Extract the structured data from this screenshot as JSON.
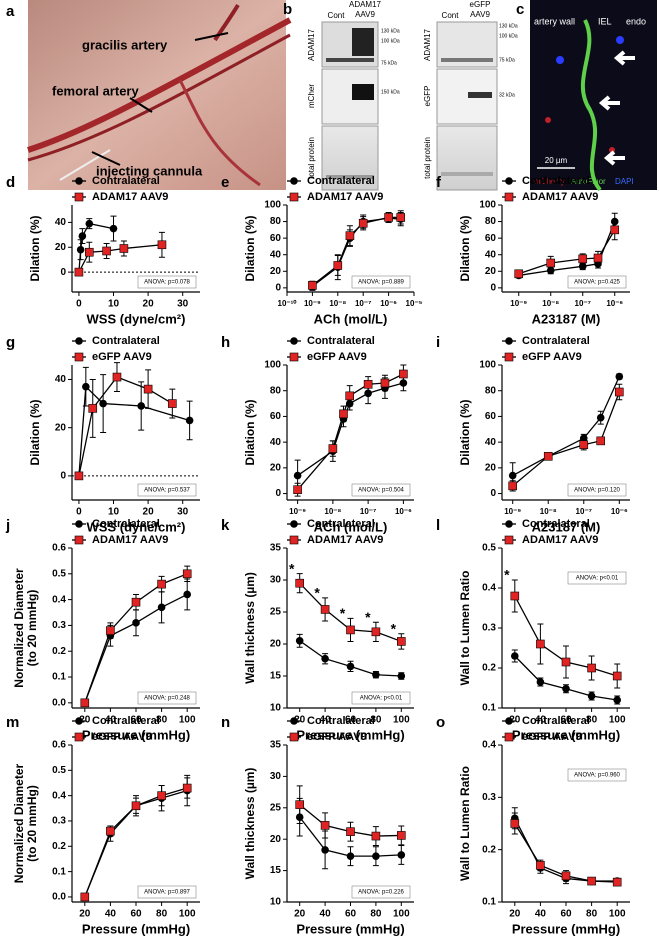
{
  "panel_a": {
    "letter": "a",
    "labels": [
      "gracilis artery",
      "femoral artery",
      "injecting cannula"
    ]
  },
  "panel_b": {
    "letter": "b",
    "left": {
      "lanes": [
        "Cont",
        "ADAM17",
        "AAV9"
      ],
      "rows": [
        "ADAM17",
        "mCher",
        "total protein"
      ],
      "sizes": [
        "130 kDa",
        "100 kDa",
        "75 kDa",
        "150 kDa"
      ]
    },
    "right": {
      "lanes": [
        "Cont",
        "eGFP",
        "AAV9"
      ],
      "rows": [
        "ADAM17",
        "eGFP",
        "total protein"
      ],
      "sizes": [
        "130 kDa",
        "100 kDa",
        "75 kDa",
        "32 kDa"
      ]
    }
  },
  "panel_c": {
    "letter": "c",
    "labels": [
      "artery wall",
      "IEL",
      "endo"
    ],
    "scale": "20 µm",
    "channels": [
      "mCherry",
      "AutoFluor",
      "DAPI"
    ]
  },
  "chart_data": [
    {
      "type": "line",
      "panel": "d",
      "xlabel": "WSS (dyne/cm²)",
      "ylabel": "Dilation (%)",
      "xlim": [
        -2,
        35
      ],
      "ylim": [
        -16,
        54
      ],
      "xticks": [
        0,
        10,
        20,
        30
      ],
      "yticks": [
        0,
        20,
        40
      ],
      "zero_line": true,
      "anova": "ANOVA: p=0.078",
      "series": [
        {
          "name": "Contralateral",
          "color": "#000000",
          "marker": "circle",
          "x": [
            0,
            0.5,
            1,
            3,
            10
          ],
          "values": [
            0,
            18,
            29,
            39,
            35
          ],
          "errors": [
            0,
            8,
            6,
            4,
            10
          ]
        },
        {
          "name": "ADAM17 AAV9",
          "color": "#e02424",
          "marker": "square",
          "x": [
            0,
            3,
            8,
            13,
            24
          ],
          "values": [
            0,
            16,
            17,
            19,
            22
          ],
          "errors": [
            0,
            8,
            6,
            6,
            10
          ]
        }
      ]
    },
    {
      "type": "line",
      "panel": "e",
      "xlabel": "ACh (mol/L)",
      "ylabel": "Dilation (%)",
      "xscale": "log",
      "xlim": [
        1e-10,
        1e-05
      ],
      "ylim": [
        -5,
        100
      ],
      "xticks": [
        {
          "value": 1e-10,
          "label": "10⁻¹⁰"
        },
        {
          "value": 1e-09,
          "label": "10⁻⁹"
        },
        {
          "value": 1e-08,
          "label": "10⁻⁸"
        },
        {
          "value": 1e-07,
          "label": "10⁻⁷"
        },
        {
          "value": 1e-06,
          "label": "10⁻⁶"
        },
        {
          "value": 1e-05,
          "label": "10⁻⁵"
        }
      ],
      "yticks": [
        0,
        20,
        40,
        60,
        80,
        100
      ],
      "anova": "ANOVA: p=0.889",
      "series": [
        {
          "name": "Contralateral",
          "color": "#000000",
          "marker": "circle",
          "x": [
            1e-09,
            1e-08,
            3e-08,
            1e-07,
            1e-06,
            3e-06
          ],
          "values": [
            2,
            25,
            60,
            80,
            84,
            83
          ],
          "errors": [
            5,
            15,
            10,
            8,
            5,
            8
          ]
        },
        {
          "name": "ADAM17 AAV9",
          "color": "#e02424",
          "marker": "square",
          "x": [
            1e-09,
            1e-08,
            3e-08,
            1e-07,
            1e-06,
            3e-06
          ],
          "values": [
            3,
            27,
            63,
            78,
            85,
            85
          ],
          "errors": [
            5,
            12,
            12,
            8,
            6,
            8
          ]
        }
      ]
    },
    {
      "type": "line",
      "panel": "f",
      "xlabel": "A23187 (M)",
      "ylabel": "Dilation (%)",
      "xscale": "log",
      "xlim": [
        3e-10,
        3e-06
      ],
      "ylim": [
        -5,
        100
      ],
      "xticks": [
        {
          "value": 1e-09,
          "label": "10⁻⁹"
        },
        {
          "value": 1e-08,
          "label": "10⁻⁸"
        },
        {
          "value": 1e-07,
          "label": "10⁻⁷"
        },
        {
          "value": 1e-06,
          "label": "10⁻⁶"
        }
      ],
      "yticks": [
        0,
        20,
        40,
        60,
        80,
        100
      ],
      "anova": "ANOVA: p=0.425",
      "series": [
        {
          "name": "Contralateral",
          "color": "#000000",
          "marker": "circle",
          "x": [
            1e-09,
            1e-08,
            1e-07,
            3e-07,
            1e-06
          ],
          "values": [
            15,
            21,
            26,
            29,
            80
          ],
          "errors": [
            3,
            4,
            4,
            5,
            10
          ]
        },
        {
          "name": "ADAM17 AAV9",
          "color": "#e02424",
          "marker": "square",
          "x": [
            1e-09,
            1e-08,
            1e-07,
            3e-07,
            1e-06
          ],
          "values": [
            17,
            30,
            35,
            36,
            70
          ],
          "errors": [
            3,
            8,
            6,
            8,
            12
          ]
        }
      ]
    },
    {
      "type": "line",
      "panel": "g",
      "xlabel": "WSS (dyne/cm²)",
      "ylabel": "Dilation (%)",
      "xlim": [
        -2,
        35
      ],
      "ylim": [
        -10,
        46
      ],
      "xticks": [
        0,
        10,
        20,
        30
      ],
      "yticks": [
        0,
        20,
        40
      ],
      "zero_line": true,
      "anova": "ANOVA: p=0.537",
      "series": [
        {
          "name": "Contralateral",
          "color": "#000000",
          "marker": "circle",
          "x": [
            0,
            2,
            7,
            18,
            32
          ],
          "values": [
            0,
            37,
            30,
            29,
            23
          ],
          "errors": [
            0,
            8,
            12,
            10,
            8
          ]
        },
        {
          "name": "eGFP AAV9",
          "color": "#e02424",
          "marker": "square",
          "x": [
            0,
            4,
            11,
            20,
            27
          ],
          "values": [
            0,
            28,
            41,
            36,
            30
          ],
          "errors": [
            0,
            12,
            6,
            8,
            6
          ]
        }
      ]
    },
    {
      "type": "line",
      "panel": "h",
      "xlabel": "ACh (mol/L)",
      "ylabel": "Dilation (%)",
      "xscale": "log",
      "xlim": [
        5e-10,
        2e-06
      ],
      "ylim": [
        -5,
        100
      ],
      "xticks": [
        {
          "value": 1e-09,
          "label": "10⁻⁹"
        },
        {
          "value": 1e-08,
          "label": "10⁻⁸"
        },
        {
          "value": 1e-07,
          "label": "10⁻⁷"
        },
        {
          "value": 1e-06,
          "label": "10⁻⁶"
        }
      ],
      "yticks": [
        0,
        20,
        40,
        60,
        80,
        100
      ],
      "anova": "ANOVA: p=0.504",
      "series": [
        {
          "name": "Contralateral",
          "color": "#000000",
          "marker": "circle",
          "x": [
            1e-09,
            1e-08,
            2e-08,
            3e-08,
            1e-07,
            3e-07,
            1e-06
          ],
          "values": [
            14,
            33,
            58,
            70,
            78,
            82,
            86
          ],
          "errors": [
            12,
            8,
            6,
            5,
            8,
            8,
            6
          ]
        },
        {
          "name": "eGFP AAV9",
          "color": "#e02424",
          "marker": "square",
          "x": [
            1e-09,
            1e-08,
            2e-08,
            3e-08,
            1e-07,
            3e-07,
            1e-06
          ],
          "values": [
            3,
            35,
            62,
            76,
            85,
            86,
            93
          ],
          "errors": [
            5,
            6,
            6,
            8,
            6,
            6,
            7
          ]
        }
      ]
    },
    {
      "type": "line",
      "panel": "i",
      "xlabel": "A23187 (M)",
      "ylabel": "Dilation (%)",
      "xscale": "log",
      "xlim": [
        5e-10,
        2e-06
      ],
      "ylim": [
        -5,
        100
      ],
      "xticks": [
        {
          "value": 1e-09,
          "label": "10⁻⁹"
        },
        {
          "value": 1e-08,
          "label": "10⁻⁸"
        },
        {
          "value": 1e-07,
          "label": "10⁻⁷"
        },
        {
          "value": 1e-06,
          "label": "10⁻⁶"
        }
      ],
      "yticks": [
        0,
        20,
        40,
        60,
        80,
        100
      ],
      "anova": "ANOVA: p=0.120",
      "series": [
        {
          "name": "Contralateral",
          "color": "#000000",
          "marker": "circle",
          "x": [
            1e-09,
            1e-08,
            1e-07,
            3e-07,
            1e-06
          ],
          "values": [
            14,
            29,
            43,
            59,
            91
          ],
          "errors": [
            10,
            2,
            3,
            5,
            2
          ]
        },
        {
          "name": "eGFP AAV9",
          "color": "#e02424",
          "marker": "square",
          "x": [
            1e-09,
            1e-08,
            1e-07,
            3e-07,
            1e-06
          ],
          "values": [
            6,
            29,
            38,
            41,
            79
          ],
          "errors": [
            4,
            2,
            4,
            2,
            6
          ]
        }
      ]
    },
    {
      "type": "line",
      "panel": "j",
      "xlabel": "Pressure (mmHg)",
      "ylabel": [
        "Normalized Diameter",
        "(to 20 mmHg)"
      ],
      "xlim": [
        10,
        110
      ],
      "ylim": [
        -0.02,
        0.6
      ],
      "xticks": [
        20,
        40,
        60,
        80,
        100
      ],
      "yticks": [
        {
          "value": 0,
          "label": "0.0"
        },
        0.1,
        0.2,
        0.3,
        0.4,
        0.5,
        0.6
      ],
      "anova": "ANOVA: p=0.248",
      "series": [
        {
          "name": "Contralateral",
          "color": "#000000",
          "marker": "circle",
          "x": [
            20,
            40,
            60,
            80,
            100
          ],
          "values": [
            0,
            0.26,
            0.31,
            0.37,
            0.42
          ],
          "errors": [
            0,
            0.04,
            0.05,
            0.06,
            0.06
          ]
        },
        {
          "name": "ADAM17 AAV9",
          "color": "#e02424",
          "marker": "square",
          "x": [
            20,
            40,
            60,
            80,
            100
          ],
          "values": [
            0,
            0.28,
            0.39,
            0.46,
            0.5
          ],
          "errors": [
            0,
            0.03,
            0.03,
            0.03,
            0.03
          ]
        }
      ]
    },
    {
      "type": "line",
      "panel": "k",
      "xlabel": "Pressure (mmHg)",
      "ylabel": "Wall thickness (µm)",
      "xlim": [
        10,
        110
      ],
      "ylim": [
        10,
        35
      ],
      "xticks": [
        20,
        40,
        60,
        80,
        100
      ],
      "yticks": [
        10,
        15,
        20,
        25,
        30,
        35
      ],
      "anova": "ANOVA: p<0.01",
      "series": [
        {
          "name": "Contralateral",
          "color": "#000000",
          "marker": "circle",
          "x": [
            20,
            40,
            60,
            80,
            100
          ],
          "values": [
            20.5,
            17.7,
            16.5,
            15.2,
            15
          ],
          "errors": [
            1,
            0.8,
            0.8,
            0.5,
            0.5
          ]
        },
        {
          "name": "ADAM17 AAV9",
          "color": "#e02424",
          "marker": "square",
          "x": [
            20,
            40,
            60,
            80,
            100
          ],
          "values": [
            29.5,
            25.4,
            22.2,
            21.9,
            20.4
          ],
          "errors": [
            1.5,
            1.8,
            1.8,
            1.5,
            1.2
          ],
          "significance": [
            "*",
            "*",
            "*",
            "*",
            "*"
          ]
        }
      ]
    },
    {
      "type": "line",
      "panel": "l",
      "xlabel": "Pressure (mmHg)",
      "ylabel": "Wall to Lumen Ratio",
      "xlim": [
        10,
        110
      ],
      "ylim": [
        0.1,
        0.5
      ],
      "xticks": [
        20,
        40,
        60,
        80,
        100
      ],
      "yticks": [
        0.1,
        0.2,
        0.3,
        0.4,
        0.5
      ],
      "anova": "ANOVA: p<0.01",
      "anova_corner": "top-right",
      "series": [
        {
          "name": "Contralateral",
          "color": "#000000",
          "marker": "circle",
          "x": [
            20,
            40,
            60,
            80,
            100
          ],
          "values": [
            0.23,
            0.165,
            0.148,
            0.13,
            0.12
          ],
          "errors": [
            0.015,
            0.01,
            0.01,
            0.01,
            0.01
          ]
        },
        {
          "name": "ADAM17 AAV9",
          "color": "#e02424",
          "marker": "square",
          "x": [
            20,
            40,
            60,
            80,
            100
          ],
          "values": [
            0.38,
            0.26,
            0.215,
            0.2,
            0.18
          ],
          "errors": [
            0.04,
            0.05,
            0.04,
            0.03,
            0.03
          ],
          "significance": [
            "*",
            null,
            null,
            null,
            null
          ]
        }
      ]
    },
    {
      "type": "line",
      "panel": "m",
      "xlabel": "Pressure (mmHg)",
      "ylabel": [
        "Normalized Diameter",
        "(to 20 mmHg)"
      ],
      "xlim": [
        10,
        110
      ],
      "ylim": [
        -0.02,
        0.6
      ],
      "xticks": [
        20,
        40,
        60,
        80,
        100
      ],
      "yticks": [
        {
          "value": 0,
          "label": "0.0"
        },
        0.1,
        0.2,
        0.3,
        0.4,
        0.5,
        0.6
      ],
      "anova": "ANOVA: p=0.897",
      "series": [
        {
          "name": "Contralateral",
          "color": "#000000",
          "marker": "circle",
          "x": [
            20,
            40,
            60,
            80,
            100
          ],
          "values": [
            0,
            0.25,
            0.36,
            0.39,
            0.42
          ],
          "errors": [
            0,
            0.03,
            0.04,
            0.05,
            0.06
          ]
        },
        {
          "name": "eGFP AAV9",
          "color": "#e02424",
          "marker": "square",
          "x": [
            20,
            40,
            60,
            80,
            100
          ],
          "values": [
            0,
            0.26,
            0.36,
            0.4,
            0.43
          ],
          "errors": [
            0,
            0.02,
            0.03,
            0.04,
            0.04
          ]
        }
      ]
    },
    {
      "type": "line",
      "panel": "n",
      "xlabel": "Pressure (mmHg)",
      "ylabel": "Wall thickness (µm)",
      "xlim": [
        10,
        110
      ],
      "ylim": [
        10,
        35
      ],
      "xticks": [
        20,
        40,
        60,
        80,
        100
      ],
      "yticks": [
        10,
        15,
        20,
        25,
        30,
        35
      ],
      "anova": "ANOVA: p=0.226",
      "series": [
        {
          "name": "Contralateral",
          "color": "#000000",
          "marker": "circle",
          "x": [
            20,
            40,
            60,
            80,
            100
          ],
          "values": [
            23.5,
            18.3,
            17.3,
            17.3,
            17.5
          ],
          "errors": [
            3,
            3,
            1.5,
            1.5,
            1.5
          ]
        },
        {
          "name": "eGFP AAV9",
          "color": "#e02424",
          "marker": "square",
          "x": [
            20,
            40,
            60,
            80,
            100
          ],
          "values": [
            25.5,
            22.2,
            21.2,
            20.5,
            20.6
          ],
          "errors": [
            3,
            2,
            1.5,
            1.5,
            1.5
          ]
        }
      ]
    },
    {
      "type": "line",
      "panel": "o",
      "xlabel": "Pressure (mmHg)",
      "ylabel": "Wall to Lumen Ratio",
      "xlim": [
        10,
        110
      ],
      "ylim": [
        0.1,
        0.4
      ],
      "xticks": [
        20,
        40,
        60,
        80,
        100
      ],
      "yticks": [
        0.1,
        0.2,
        0.3,
        0.4
      ],
      "anova": "ANOVA: p=0.960",
      "anova_corner": "top-right",
      "series": [
        {
          "name": "Contralateral",
          "color": "#000000",
          "marker": "circle",
          "x": [
            20,
            40,
            60,
            80,
            100
          ],
          "values": [
            0.26,
            0.165,
            0.145,
            0.14,
            0.14
          ],
          "errors": [
            0.02,
            0.01,
            0.01,
            0.005,
            0.005
          ]
        },
        {
          "name": "eGFP AAV9",
          "color": "#e02424",
          "marker": "square",
          "x": [
            20,
            40,
            60,
            80,
            100
          ],
          "values": [
            0.25,
            0.17,
            0.15,
            0.14,
            0.138
          ],
          "errors": [
            0.02,
            0.01,
            0.01,
            0.005,
            0.005
          ]
        }
      ]
    }
  ]
}
